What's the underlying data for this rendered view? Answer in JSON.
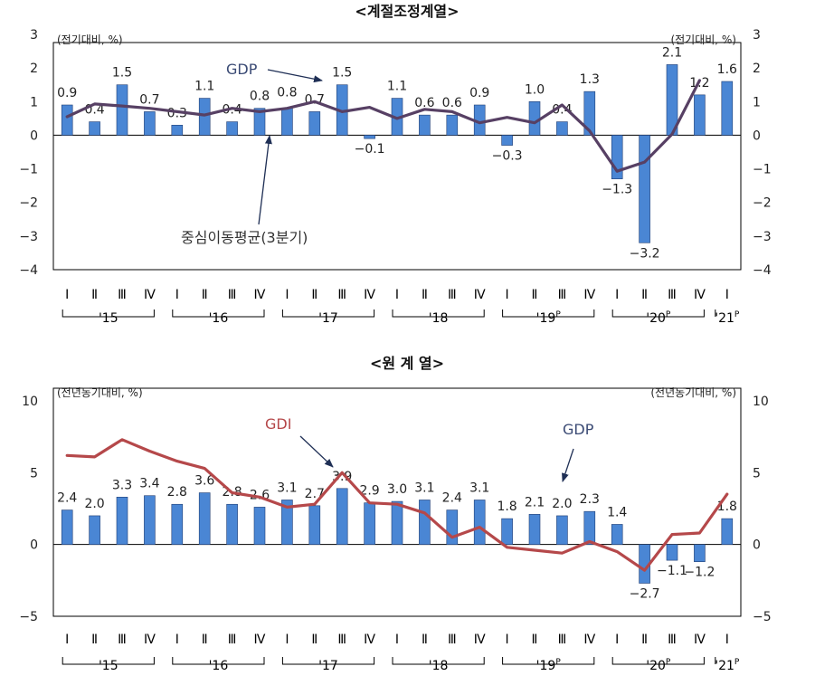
{
  "colors": {
    "bar_fill": "#4a86d4",
    "bar_stroke": "#1f3d73",
    "moving_avg_line": "#574064",
    "gdi_line": "#b5484a",
    "frame": "#000000",
    "text": "#222222",
    "gdp_label": "#3a4a74",
    "gdi_label": "#b5484a"
  },
  "quarter_labels": [
    "Ⅰ",
    "Ⅱ",
    "Ⅲ",
    "Ⅳ",
    "Ⅰ",
    "Ⅱ",
    "Ⅲ",
    "Ⅳ",
    "Ⅰ",
    "Ⅱ",
    "Ⅲ",
    "Ⅳ",
    "Ⅰ",
    "Ⅱ",
    "Ⅲ",
    "Ⅳ",
    "Ⅰ",
    "Ⅱ",
    "Ⅲ",
    "Ⅳ",
    "Ⅰ",
    "Ⅱ",
    "Ⅲ",
    "Ⅳ",
    "Ⅰ"
  ],
  "year_groups": [
    {
      "label": "'15",
      "sup": "",
      "start": 0,
      "end": 3
    },
    {
      "label": "'16",
      "sup": "",
      "start": 4,
      "end": 7
    },
    {
      "label": "'17",
      "sup": "",
      "start": 8,
      "end": 11
    },
    {
      "label": "'18",
      "sup": "",
      "start": 12,
      "end": 15
    },
    {
      "label": "'19",
      "sup": "P",
      "start": 16,
      "end": 19
    },
    {
      "label": "'20",
      "sup": "P",
      "start": 20,
      "end": 23
    },
    {
      "label": "'21",
      "sup": "P",
      "start": 24,
      "end": 24
    }
  ],
  "chart_data": [
    {
      "type": "bar",
      "title": "<계절조정계열>",
      "ylabel_left": "(전기대비, %)",
      "ylabel_right": "(전기대비, %)",
      "ylim": [
        -4,
        3
      ],
      "yticks": [
        "3",
        "2",
        "1",
        "0",
        "−1",
        "−2",
        "−3",
        "−4"
      ],
      "grid": false,
      "series": [
        {
          "name": "GDP",
          "kind": "bar",
          "values": [
            0.9,
            0.4,
            1.5,
            0.7,
            0.3,
            1.1,
            0.4,
            0.8,
            0.8,
            0.7,
            1.5,
            -0.1,
            1.1,
            0.6,
            0.6,
            0.9,
            -0.3,
            1.0,
            0.4,
            1.3,
            -1.3,
            -3.2,
            2.1,
            1.2,
            1.6
          ],
          "labels": [
            "0.9",
            "0.4",
            "1.5",
            "0.7",
            "0.3",
            "1.1",
            "0.4",
            "0.8",
            "0.8",
            "0.7",
            "1.5",
            "−0.1",
            "1.1",
            "0.6",
            "0.6",
            "0.9",
            "−0.3",
            "1.0",
            "0.4",
            "1.3",
            "−1.3",
            "−3.2",
            "2.1",
            "1.2",
            "1.6"
          ]
        },
        {
          "name": "중심이동평균(3분기)",
          "kind": "line",
          "values": [
            0.55,
            0.93,
            0.87,
            0.8,
            0.7,
            0.6,
            0.8,
            0.7,
            0.8,
            1.0,
            0.7,
            0.83,
            0.5,
            0.77,
            0.7,
            0.37,
            0.53,
            0.37,
            0.9,
            0.13,
            -1.07,
            -0.8,
            0.03,
            1.63
          ]
        }
      ],
      "annotations": [
        "GDP",
        "중심이동평균(3분기)"
      ]
    },
    {
      "type": "bar",
      "title": "<원  계  열>",
      "ylabel_left": "(전년동기대비, %)",
      "ylabel_right": "(전년동기대비, %)",
      "ylim": [
        -5,
        10
      ],
      "yticks": [
        "10",
        "5",
        "0",
        "−5"
      ],
      "grid": false,
      "series": [
        {
          "name": "GDP",
          "kind": "bar",
          "values": [
            2.4,
            2.0,
            3.3,
            3.4,
            2.8,
            3.6,
            2.8,
            2.6,
            3.1,
            2.7,
            3.9,
            2.9,
            3.0,
            3.1,
            2.4,
            3.1,
            1.8,
            2.1,
            2.0,
            2.3,
            1.4,
            -2.7,
            -1.1,
            -1.2,
            1.8
          ],
          "labels": [
            "2.4",
            "2.0",
            "3.3",
            "3.4",
            "2.8",
            "3.6",
            "2.8",
            "2.6",
            "3.1",
            "2.7",
            "3.9",
            "2.9",
            "3.0",
            "3.1",
            "2.4",
            "3.1",
            "1.8",
            "2.1",
            "2.0",
            "2.3",
            "1.4",
            "−2.7",
            "−1.1",
            "−1.2",
            "1.8"
          ]
        },
        {
          "name": "GDI",
          "kind": "line",
          "values": [
            6.2,
            6.1,
            7.3,
            6.5,
            5.8,
            5.3,
            3.6,
            3.3,
            2.6,
            2.8,
            5.0,
            2.9,
            2.8,
            2.2,
            0.5,
            1.2,
            -0.2,
            -0.4,
            -0.6,
            0.2,
            -0.5,
            -1.8,
            0.7,
            0.8,
            3.5
          ]
        }
      ],
      "annotations": [
        "GDI",
        "GDP"
      ]
    }
  ]
}
